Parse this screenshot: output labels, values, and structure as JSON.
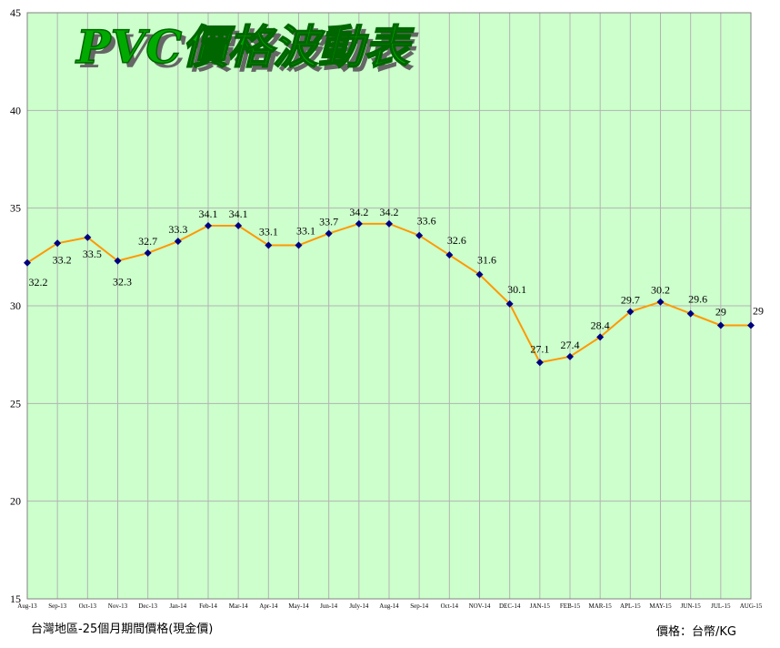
{
  "chart_data": {
    "type": "line",
    "title": "PVC價格波動表",
    "categories": [
      "Aug-13",
      "Sep-13",
      "Oct-13",
      "Nov-13",
      "Dec-13",
      "Jan-14",
      "Feb-14",
      "Mar-14",
      "Apr-14",
      "May-14",
      "Jun-14",
      "July-14",
      "Aug-14",
      "Sep-14",
      "Oct-14",
      "NOV-14",
      "DEC-14",
      "JAN-15",
      "FEB-15",
      "MAR-15",
      "APL-15",
      "MAY-15",
      "JUN-15",
      "JUL-15",
      "AUG-15"
    ],
    "series": [
      {
        "values": [
          32.2,
          33.2,
          33.5,
          32.3,
          32.7,
          33.3,
          34.1,
          34.1,
          33.1,
          33.1,
          33.7,
          34.2,
          34.2,
          33.6,
          32.6,
          31.6,
          30.1,
          27.1,
          27.4,
          28.4,
          29.7,
          30.2,
          29.6,
          29,
          29
        ]
      }
    ],
    "ylim": [
      15,
      45
    ],
    "yticks": [
      15,
      20,
      25,
      30,
      35,
      40,
      45
    ],
    "grid": true,
    "colors": {
      "plot_bg": "#ccffcc",
      "line": "#ff9900",
      "marker": "#000080",
      "grid": "#b3b3b3",
      "title": "#00aa00"
    }
  },
  "footnote_left": "台灣地區-25個月期間價格(現金價)",
  "footnote_right": "價格：台幣/KG"
}
